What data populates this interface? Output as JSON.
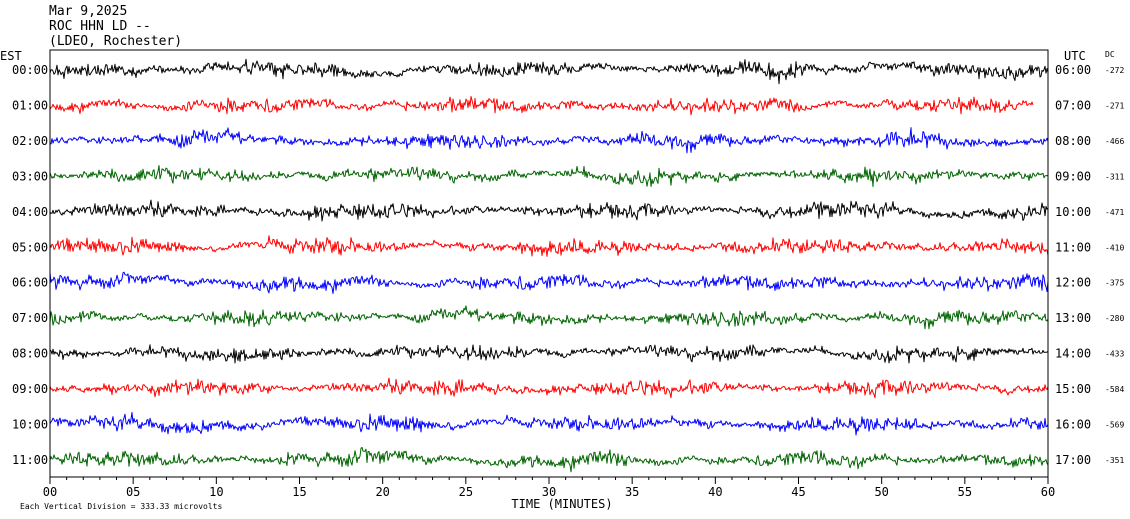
{
  "header": {
    "date": "Mar 9,2025",
    "station": "ROC HHN LD --",
    "network": "(LDEO, Rochester)"
  },
  "chart_data": {
    "type": "line",
    "title": "",
    "xlabel": "TIME (MINUTES)",
    "left_axis_title": "EST",
    "right_axis_title": "UTC",
    "dc_title": "DC",
    "xlim": [
      0,
      60
    ],
    "x_ticks": [
      "00",
      "05",
      "10",
      "15",
      "20",
      "25",
      "30",
      "35",
      "40",
      "45",
      "50",
      "55",
      "60"
    ],
    "scale_note": "Each Vertical Division =  333.33 microvolts",
    "trace_colors": [
      "#000000",
      "#ff0000",
      "#0000ff",
      "#006400"
    ],
    "rows": [
      {
        "est": "00:00",
        "utc": "06:00",
        "dc": "-272"
      },
      {
        "est": "01:00",
        "utc": "07:00",
        "dc": "-271"
      },
      {
        "est": "02:00",
        "utc": "08:00",
        "dc": "-466"
      },
      {
        "est": "03:00",
        "utc": "09:00",
        "dc": "-311"
      },
      {
        "est": "04:00",
        "utc": "10:00",
        "dc": "-471"
      },
      {
        "est": "05:00",
        "utc": "11:00",
        "dc": "-410"
      },
      {
        "est": "06:00",
        "utc": "12:00",
        "dc": "-375"
      },
      {
        "est": "07:00",
        "utc": "13:00",
        "dc": "-280"
      },
      {
        "est": "08:00",
        "utc": "14:00",
        "dc": "-433"
      },
      {
        "est": "09:00",
        "utc": "15:00",
        "dc": "-584"
      },
      {
        "est": "10:00",
        "utc": "16:00",
        "dc": "-569"
      },
      {
        "est": "11:00",
        "utc": "17:00",
        "dc": "-351"
      }
    ]
  }
}
